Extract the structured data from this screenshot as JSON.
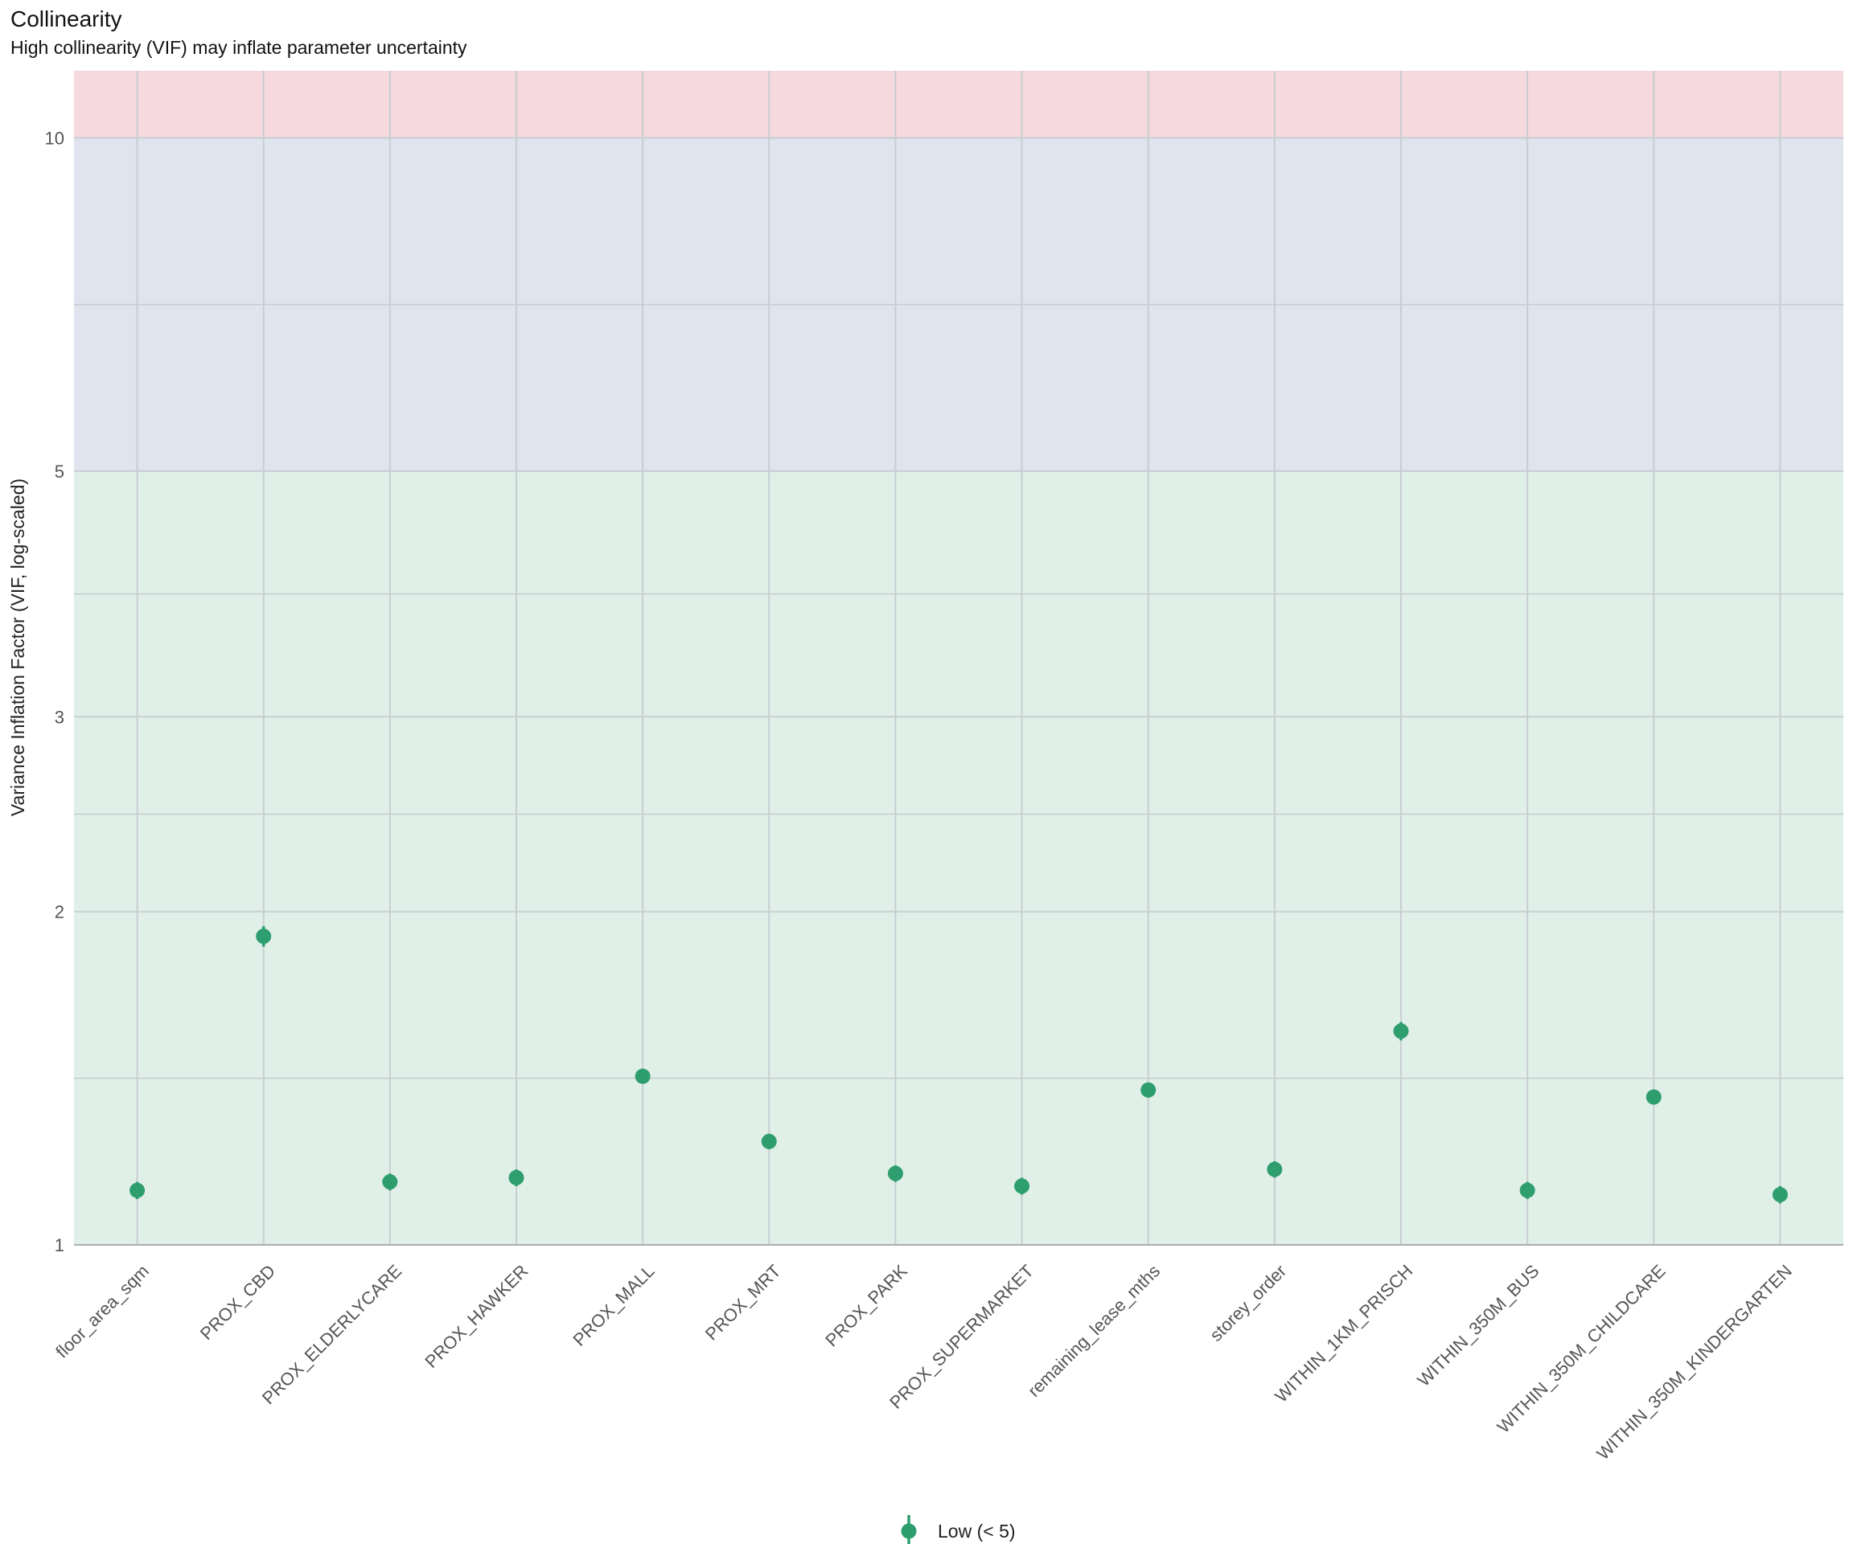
{
  "chart_data": {
    "type": "scatter",
    "title": "Collinearity",
    "subtitle": "High collinearity (VIF) may inflate parameter uncertainty",
    "xlabel": "",
    "ylabel": "Variance Inflation Factor (VIF, log-scaled)",
    "y_scale": "log",
    "ylim": [
      1,
      11.5
    ],
    "y_ticks": [
      1,
      2,
      3,
      5,
      10
    ],
    "grid": true,
    "categories": [
      "floor_area_sqm",
      "PROX_CBD",
      "PROX_ELDERLYCARE",
      "PROX_HAWKER",
      "PROX_MALL",
      "PROX_MRT",
      "PROX_PARK",
      "PROX_SUPERMARKET",
      "remaining_lease_mths",
      "storey_order",
      "WITHIN_1KM_PRISCH",
      "WITHIN_350M_BUS",
      "WITHIN_350M_CHILDCARE",
      "WITHIN_350M_KINDERGARTEN"
    ],
    "series": [
      {
        "name": "Low (< 5)",
        "color": "#2E9E6E",
        "values": [
          1.12,
          1.9,
          1.14,
          1.15,
          1.42,
          1.24,
          1.16,
          1.13,
          1.38,
          1.17,
          1.56,
          1.12,
          1.36,
          1.11
        ],
        "ci_low": [
          1.1,
          1.86,
          1.12,
          1.13,
          1.4,
          1.22,
          1.14,
          1.11,
          1.36,
          1.15,
          1.53,
          1.1,
          1.34,
          1.09
        ],
        "ci_high": [
          1.14,
          1.94,
          1.16,
          1.17,
          1.44,
          1.26,
          1.18,
          1.15,
          1.4,
          1.19,
          1.59,
          1.14,
          1.38,
          1.13
        ]
      }
    ],
    "bands": [
      {
        "from": 1,
        "to": 5,
        "color": "#E0F0E8"
      },
      {
        "from": 5,
        "to": 10,
        "color": "#DFE4EF"
      },
      {
        "from": 10,
        "to": 11.5,
        "color": "#F5D9DE"
      }
    ],
    "legend_position": "bottom"
  }
}
